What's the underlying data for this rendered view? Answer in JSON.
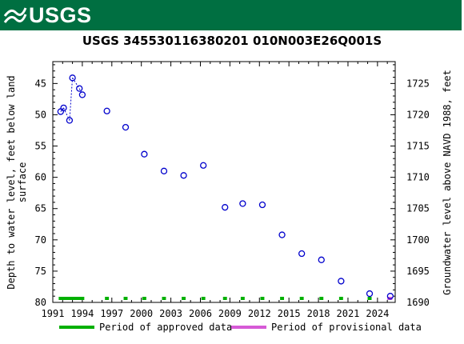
{
  "header": {
    "logo_text": "USGS"
  },
  "colors": {
    "brand": "#006f41",
    "points": "#0000cc",
    "approved": "#00b000",
    "provisional": "#d65ad6"
  },
  "chart_data": {
    "type": "scatter",
    "title": "USGS 345530116380201 010N003E26Q001S",
    "ylabel_left": "Depth to water level, feet below land surface",
    "ylabel_right": "Groundwater level above NAVD 1988, feet",
    "left_axis": {
      "min": 80,
      "max": 41.5,
      "ticks": [
        45,
        50,
        55,
        60,
        65,
        70,
        75,
        80
      ],
      "inverted": true
    },
    "right_axis": {
      "ticks": [
        1690,
        1695,
        1700,
        1705,
        1710,
        1715,
        1720,
        1725
      ],
      "offset": 1770
    },
    "x_axis": {
      "min": 1991.0,
      "max": 2025.8,
      "ticks": [
        1991,
        1994,
        1997,
        2000,
        2003,
        2006,
        2009,
        2012,
        2015,
        2018,
        2021,
        2024
      ]
    },
    "grid": false,
    "points": [
      {
        "x": 1991.8,
        "y": 49.5
      },
      {
        "x": 1992.1,
        "y": 48.9
      },
      {
        "x": 1992.7,
        "y": 50.9
      },
      {
        "x": 1993.0,
        "y": 44.1
      },
      {
        "x": 1993.7,
        "y": 45.8
      },
      {
        "x": 1994.0,
        "y": 46.8
      },
      {
        "x": 1996.5,
        "y": 49.4
      },
      {
        "x": 1998.4,
        "y": 52.0
      },
      {
        "x": 2000.3,
        "y": 56.3
      },
      {
        "x": 2002.3,
        "y": 59.0
      },
      {
        "x": 2004.3,
        "y": 59.7
      },
      {
        "x": 2006.3,
        "y": 58.1
      },
      {
        "x": 2008.5,
        "y": 64.8
      },
      {
        "x": 2010.3,
        "y": 64.2
      },
      {
        "x": 2012.3,
        "y": 64.4
      },
      {
        "x": 2014.3,
        "y": 69.2
      },
      {
        "x": 2016.3,
        "y": 72.2
      },
      {
        "x": 2018.3,
        "y": 73.2
      },
      {
        "x": 2020.3,
        "y": 76.6
      },
      {
        "x": 2023.2,
        "y": 78.6
      },
      {
        "x": 2025.3,
        "y": 79.0
      }
    ],
    "dotted_segment_count": 6,
    "approved_periods": [
      [
        1991.6,
        1994.2
      ],
      [
        1996.3,
        1996.7
      ],
      [
        1998.2,
        1998.6
      ],
      [
        2000.1,
        2000.5
      ],
      [
        2002.1,
        2002.5
      ],
      [
        2004.1,
        2004.5
      ],
      [
        2006.1,
        2006.5
      ],
      [
        2008.3,
        2008.7
      ],
      [
        2010.1,
        2010.5
      ],
      [
        2012.1,
        2012.5
      ],
      [
        2014.1,
        2014.5
      ],
      [
        2016.1,
        2016.5
      ],
      [
        2018.1,
        2018.5
      ],
      [
        2020.1,
        2020.5
      ],
      [
        2023.0,
        2023.4
      ]
    ],
    "provisional_periods": [
      [
        2025.0,
        2025.5
      ]
    ],
    "legend": {
      "approved": "Period of approved data",
      "provisional": "Period of provisional data"
    }
  }
}
